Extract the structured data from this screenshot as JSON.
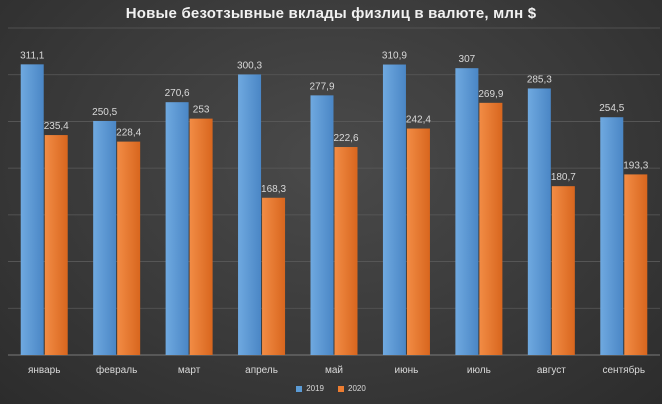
{
  "chart_data": {
    "type": "bar",
    "title": "Новые безотзывные вклады физлиц в валюте, млн $",
    "categories": [
      "январь",
      "февраль",
      "март",
      "апрель",
      "май",
      "июнь",
      "июль",
      "август",
      "сентябрь"
    ],
    "series": [
      {
        "name": "2019",
        "values": [
          311.1,
          250.5,
          270.6,
          300.3,
          277.9,
          310.9,
          307,
          285.3,
          254.5
        ],
        "labels": [
          "311,1",
          "250,5",
          "270,6",
          "300,3",
          "277,9",
          "310,9",
          "307",
          "285,3",
          "254,5"
        ],
        "color": "#5b9bd5"
      },
      {
        "name": "2020",
        "values": [
          235.4,
          228.4,
          253,
          168.3,
          222.6,
          242.4,
          269.9,
          180.7,
          193.3
        ],
        "labels": [
          "235,4",
          "228,4",
          "253",
          "168,3",
          "222,6",
          "242,4",
          "269,9",
          "180,7",
          "193,3"
        ],
        "color": "#ed7d31"
      }
    ],
    "ylim": [
      0,
      350
    ],
    "grid": true,
    "legend_position": "bottom"
  }
}
